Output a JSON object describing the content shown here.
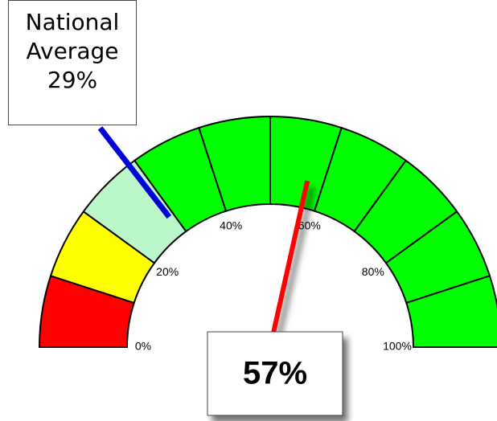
{
  "chart_data": {
    "type": "gauge",
    "range": [
      0,
      100
    ],
    "bands": [
      {
        "from": 0,
        "to": 10,
        "color": "#ff0000"
      },
      {
        "from": 10,
        "to": 20,
        "color": "#ffff00"
      },
      {
        "from": 20,
        "to": 30,
        "color": "#bbf7c8"
      },
      {
        "from": 30,
        "to": 40,
        "color": "#00ff00"
      },
      {
        "from": 40,
        "to": 50,
        "color": "#00ff00"
      },
      {
        "from": 50,
        "to": 60,
        "color": "#00ff00"
      },
      {
        "from": 60,
        "to": 70,
        "color": "#00ff00"
      },
      {
        "from": 70,
        "to": 80,
        "color": "#00ff00"
      },
      {
        "from": 80,
        "to": 90,
        "color": "#00ff00"
      },
      {
        "from": 90,
        "to": 100,
        "color": "#00ff00"
      }
    ],
    "ticks": [
      {
        "value": 0,
        "label": "0%"
      },
      {
        "value": 20,
        "label": "20%"
      },
      {
        "value": 40,
        "label": "40%"
      },
      {
        "value": 60,
        "label": "60%"
      },
      {
        "value": 80,
        "label": "80%"
      },
      {
        "value": 100,
        "label": "100%"
      }
    ],
    "value": 57,
    "value_label": "57%",
    "needle_color": "#ff0000",
    "marker": {
      "name": "National Average",
      "value": 29,
      "value_label": "29%",
      "color": "#0000dd"
    }
  }
}
